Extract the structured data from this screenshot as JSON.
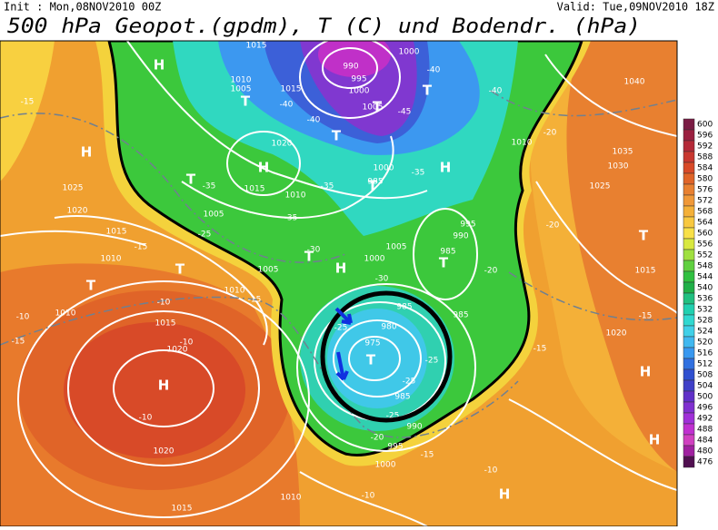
{
  "header": {
    "init": "Init : Mon,08NOV2010 00Z",
    "valid": "Valid: Tue,09NOV2010 18Z",
    "title": "500 hPa Geopot.(gpdm), T (C) und Bodendr. (hPa)"
  },
  "colorbar": {
    "levels": [
      600,
      596,
      592,
      588,
      584,
      580,
      576,
      572,
      568,
      564,
      560,
      556,
      552,
      548,
      544,
      540,
      536,
      532,
      528,
      524,
      520,
      516,
      512,
      508,
      504,
      500,
      496,
      492,
      488,
      484,
      480,
      476
    ],
    "colors": [
      "#7a1c44",
      "#9a2040",
      "#b42a38",
      "#c83830",
      "#d84a28",
      "#e06428",
      "#e88030",
      "#f09838",
      "#f4b038",
      "#f8c840",
      "#f8e048",
      "#d8e840",
      "#a0e040",
      "#60d040",
      "#30c040",
      "#20b048",
      "#20c080",
      "#20d0b0",
      "#30d8d0",
      "#40d0e8",
      "#40b8f0",
      "#3898f0",
      "#3070e0",
      "#3050d0",
      "#4040c8",
      "#6030c8",
      "#8030d0",
      "#a030d8",
      "#c030d0",
      "#d040c0",
      "#a020a0",
      "#501050"
    ]
  },
  "map": {
    "labels": [
      "H",
      "H",
      "H",
      "H",
      "H",
      "H",
      "H",
      "H",
      "H",
      "T",
      "T",
      "T",
      "T",
      "T",
      "T",
      "T",
      "T",
      "T",
      "T",
      "T",
      "T",
      "1015",
      "990",
      "1000",
      "995",
      "1010",
      "1005",
      "1015",
      "1000",
      "1005",
      "1020",
      "1000",
      "985",
      "1015",
      "1010",
      "1025",
      "1020",
      "1005",
      "1015",
      "1010",
      "1005",
      "1010",
      "1005",
      "1000",
      "995",
      "990",
      "985",
      "985",
      "980",
      "975",
      "985",
      "985",
      "990",
      "995",
      "1000",
      "1010",
      "1015",
      "1020",
      "1020",
      "1015",
      "1010",
      "1040",
      "1035",
      "1030",
      "1025",
      "1010",
      "1020",
      "1015",
      "-15",
      "-40",
      "-40",
      "-45",
      "-40",
      "-40",
      "-35",
      "-35",
      "-35",
      "-35",
      "-30",
      "-30",
      "-25",
      "-25",
      "-25",
      "-25",
      "-25",
      "-20",
      "-20",
      "-20",
      "-20",
      "-15",
      "-15",
      "-15",
      "-15",
      "-15",
      "-15",
      "-10",
      "-10",
      "-10",
      "-10",
      "-10",
      "-10"
    ]
  }
}
